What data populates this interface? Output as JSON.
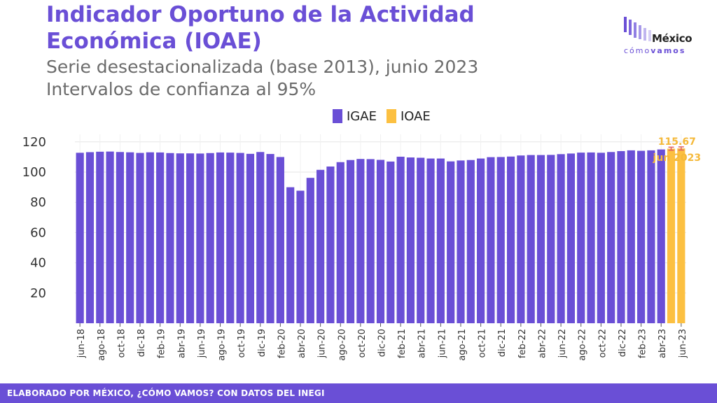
{
  "header": {
    "title": "Indicador Oportuno de la Actividad Económica (IOAE)",
    "subtitle_line1": "Serie desestacionalizada (base 2013), junio 2023",
    "subtitle_line2": "Intervalos de confianza al 95%"
  },
  "logo": {
    "word": "México",
    "sub_light": "cómo",
    "sub_bold": "vamos"
  },
  "footer": {
    "text": "ELABORADO POR MÉXICO, ¿CÓMO VAMOS? CON DATOS DEL INEGI"
  },
  "colors": {
    "igae": "#6a4fd6",
    "ioae": "#fcc041",
    "error_bar": "#e06060",
    "annotation": "#f5b93a"
  },
  "chart_data": {
    "type": "bar",
    "title": "Indicador Oportuno de la Actividad Económica (IOAE)",
    "subtitle": "Serie desestacionalizada (base 2013), junio 2023",
    "grid": true,
    "legend_position": "top",
    "ylim": [
      0,
      125
    ],
    "yticks": [
      20,
      40,
      60,
      80,
      100,
      120
    ],
    "x_tick_labels": [
      "jun-18",
      "ago-18",
      "oct-18",
      "dic-18",
      "feb-19",
      "abr-19",
      "jun-19",
      "ago-19",
      "oct-19",
      "dic-19",
      "feb-20",
      "abr-20",
      "jun-20",
      "ago-20",
      "oct-20",
      "dic-20",
      "feb-21",
      "abr-21",
      "jun-21",
      "ago-21",
      "oct-21",
      "dic-21",
      "feb-22",
      "abr-22",
      "jun-22",
      "ago-22",
      "oct-22",
      "dic-22",
      "feb-23",
      "abr-23",
      "jun-23"
    ],
    "series": [
      {
        "name": "IGAE",
        "values": [
          112.8,
          113.2,
          113.5,
          113.6,
          113.3,
          113.1,
          112.7,
          113.1,
          113.0,
          112.6,
          112.4,
          112.4,
          112.3,
          112.6,
          113.0,
          112.9,
          112.7,
          112.1,
          113.3,
          112.0,
          110.0,
          90.0,
          87.7,
          96.2,
          101.5,
          103.7,
          106.6,
          108.0,
          108.7,
          108.6,
          108.1,
          107.0,
          110.2,
          109.7,
          109.5,
          109.0,
          109.0,
          107.1,
          107.7,
          108.0,
          109.0,
          109.9,
          110.0,
          110.3,
          111.0,
          111.3,
          111.3,
          111.4,
          111.9,
          112.3,
          112.9,
          113.0,
          112.8,
          113.3,
          113.9,
          114.4,
          114.1,
          114.4,
          115.0
        ]
      },
      {
        "name": "IOAE",
        "values": [
          115.5,
          115.67
        ],
        "ci_low": [
          114.5,
          114.6
        ],
        "ci_high": [
          116.5,
          116.7
        ]
      }
    ],
    "annotations": [
      {
        "value_label": "115.67",
        "date_label": "jun 2023"
      }
    ]
  }
}
